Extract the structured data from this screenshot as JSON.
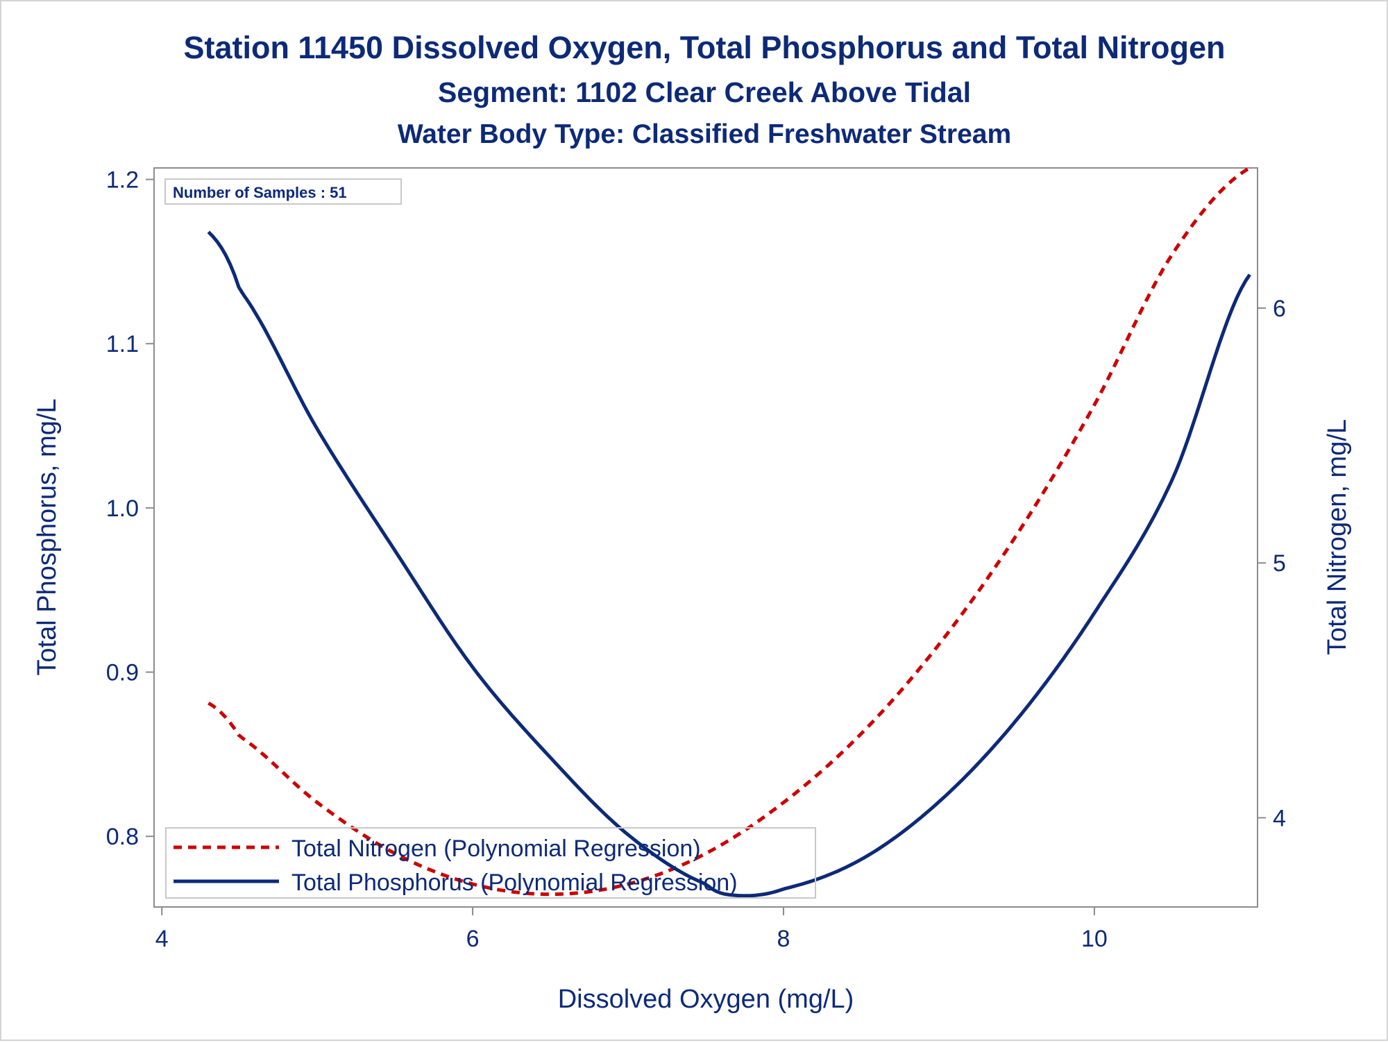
{
  "chart_data": {
    "type": "line",
    "title": "Station 11450  Dissolved Oxygen, Total Phosphorus and Total Nitrogen",
    "subtitle": "Segment: 1102  Clear Creek Above Tidal",
    "subtitle2": "Water Body Type: Classified Freshwater Stream",
    "xlabel": "Dissolved Oxygen (mg/L)",
    "ylabel": "Total Phosphorus, mg/L",
    "y2label": "Total Nitrogen, mg/L",
    "xlim": [
      3.95,
      11.05
    ],
    "ylim": [
      0.757,
      1.207
    ],
    "y2lim": [
      3.65,
      6.55
    ],
    "xticks": [
      4,
      6,
      8,
      10
    ],
    "yticks": [
      0.8,
      0.9,
      1.0,
      1.1,
      1.2
    ],
    "y2ticks": [
      4,
      5,
      6
    ],
    "xtick_labels": [
      "4",
      "6",
      "8",
      "10"
    ],
    "ytick_labels": [
      "0.8",
      "0.9",
      "1.0",
      "1.1",
      "1.2"
    ],
    "y2tick_labels": [
      "4",
      "5",
      "6"
    ],
    "annotation": "Number of Samples : 51",
    "legend_position": "bottom-left",
    "colors": {
      "text": "#0d2a78",
      "axis": "#8c8c8c",
      "phosphorus": "#0d2a78",
      "nitrogen": "#cc0000"
    },
    "series": [
      {
        "name": "Total Nitrogen (Polynomial Regression)",
        "axis": "right",
        "style": "dashed",
        "x": [
          4.3,
          4.5,
          5.0,
          5.5,
          6.0,
          6.5,
          7.0,
          7.5,
          8.0,
          8.5,
          9.0,
          9.5,
          10.0,
          10.5,
          11.0
        ],
        "values": [
          4.45,
          4.32,
          4.06,
          3.86,
          3.74,
          3.7,
          3.74,
          3.86,
          4.06,
          4.33,
          4.68,
          5.11,
          5.62,
          6.21,
          6.55
        ]
      },
      {
        "name": "Total Phosphorus (Polynomial Regression)",
        "axis": "left",
        "style": "solid",
        "x": [
          4.3,
          4.5,
          5.0,
          5.5,
          6.0,
          6.5,
          7.0,
          7.5,
          7.7,
          8.0,
          8.5,
          9.0,
          9.5,
          10.0,
          10.5,
          11.0
        ],
        "values": [
          1.168,
          1.133,
          1.048,
          0.974,
          0.903,
          0.848,
          0.801,
          0.771,
          0.764,
          0.768,
          0.786,
          0.821,
          0.871,
          0.936,
          1.017,
          1.142
        ]
      }
    ]
  }
}
